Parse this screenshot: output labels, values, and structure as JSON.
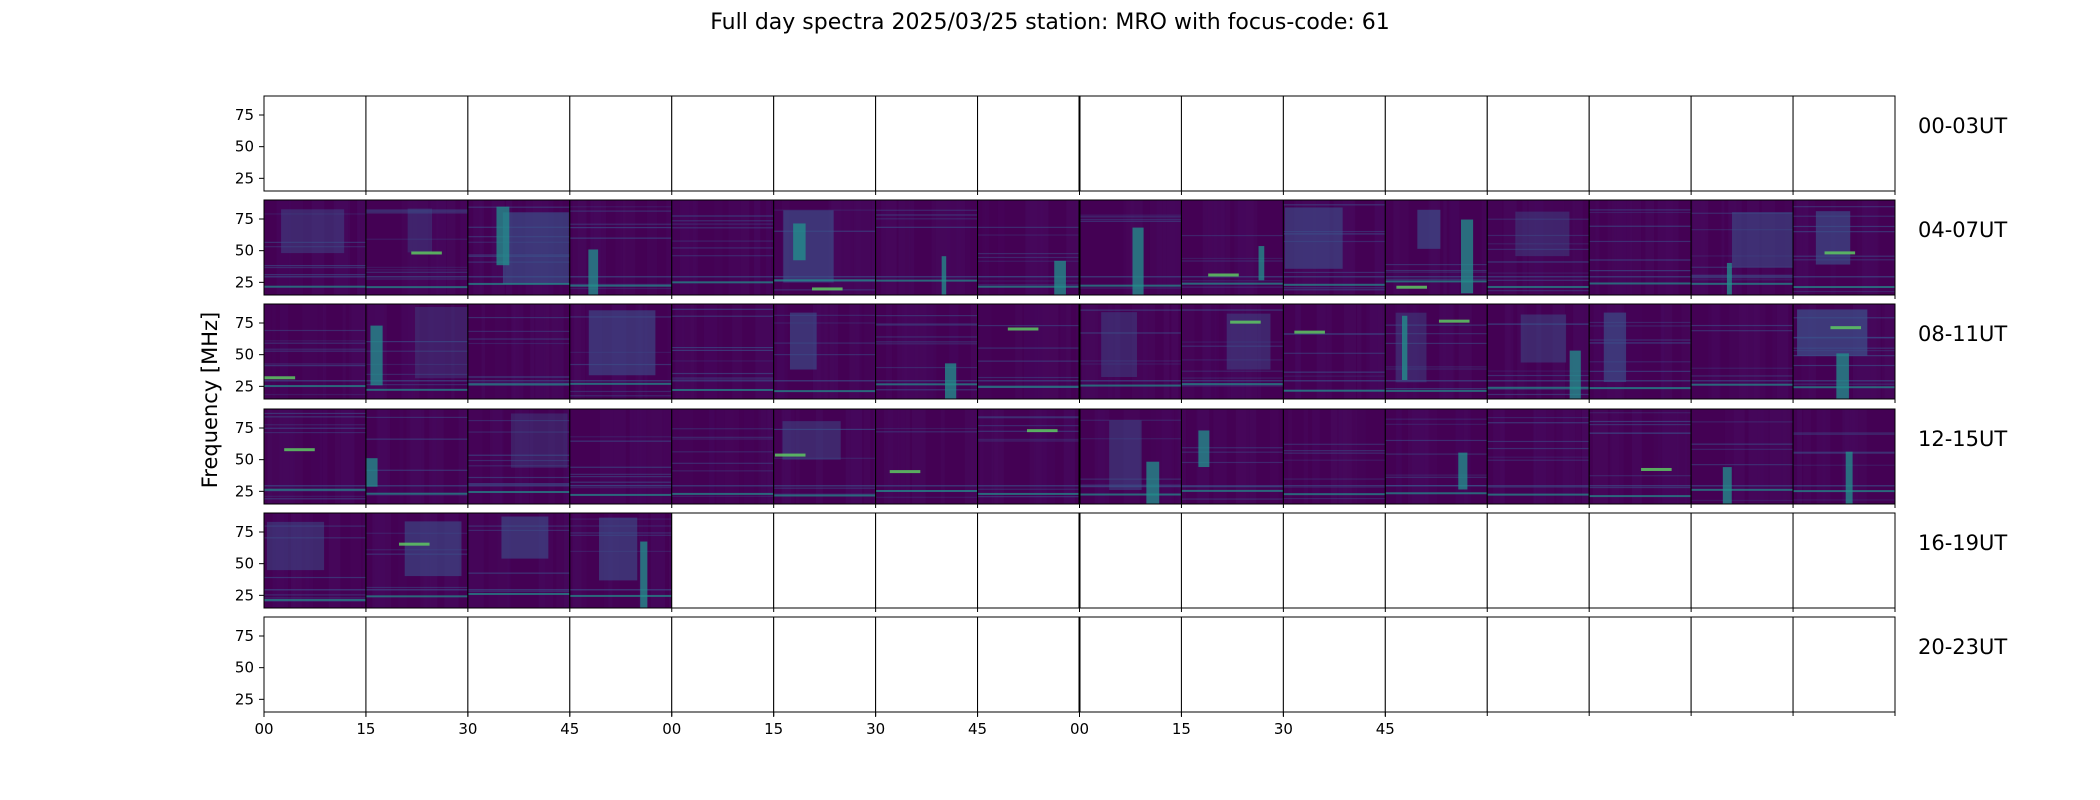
{
  "chart_data": {
    "type": "heatmap",
    "title": "Full day spectra 2025/03/25 station: MRO with focus-code: 61",
    "ylabel": "Frequency [MHz]",
    "yticks": [
      25,
      50,
      75
    ],
    "ylim": [
      15,
      90
    ],
    "xticks": [
      "00",
      "15",
      "30",
      "45",
      "00",
      "15",
      "30",
      "45",
      "00",
      "15",
      "30",
      "45"
    ],
    "colormap": "viridis",
    "colors": {
      "background": "#440154",
      "low": "#46085c",
      "mid": "#3b528b",
      "high": "#21918c",
      "peak": "#5ec962",
      "max": "#fde725"
    },
    "rows": [
      {
        "label": "00-03UT",
        "has_data": [
          false,
          false,
          false,
          false,
          false,
          false,
          false,
          false,
          false,
          false,
          false,
          false,
          false,
          false,
          false,
          false
        ]
      },
      {
        "label": "04-07UT",
        "has_data": [
          true,
          true,
          true,
          true,
          true,
          true,
          true,
          true,
          true,
          true,
          true,
          true,
          true,
          true,
          true,
          true
        ]
      },
      {
        "label": "08-11UT",
        "has_data": [
          true,
          true,
          true,
          true,
          true,
          true,
          true,
          true,
          true,
          true,
          true,
          true,
          true,
          true,
          true,
          true
        ]
      },
      {
        "label": "12-15UT",
        "has_data": [
          true,
          true,
          true,
          true,
          true,
          true,
          true,
          true,
          true,
          true,
          true,
          true,
          true,
          true,
          true,
          true
        ]
      },
      {
        "label": "16-19UT",
        "has_data": [
          true,
          true,
          true,
          true,
          false,
          false,
          false,
          false,
          false,
          false,
          false,
          false,
          false,
          false,
          false,
          false
        ]
      },
      {
        "label": "20-23UT",
        "has_data": [
          false,
          false,
          false,
          false,
          false,
          false,
          false,
          false,
          false,
          false,
          false,
          false,
          false,
          false,
          false,
          false
        ]
      }
    ]
  }
}
